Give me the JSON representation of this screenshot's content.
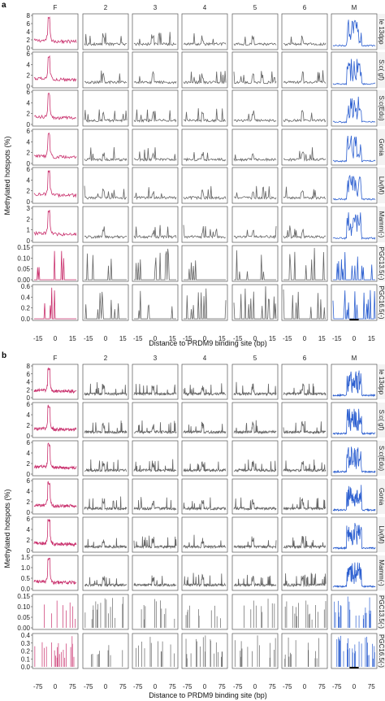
{
  "chart_data": [
    {
      "panel_label": "a",
      "type": "line",
      "grid": "facet 8 rows x 7 columns",
      "columns": [
        "F",
        "2",
        "3",
        "4",
        "5",
        "6",
        "M"
      ],
      "rows": [
        "Ie 13dpp",
        "S:c( gf)",
        "S:c(Edu)",
        "Gonia",
        "Liv(M)",
        "Mamm(-)",
        "PGC13.5(-)",
        "PGC16.5(-)"
      ],
      "ylabel": "Methylated hotspots (%)",
      "xlabel": "Distance to PRDM9 binding site (bp)",
      "xtick_labels": [
        "-15",
        "0",
        "15"
      ],
      "xlim": [
        -15,
        15
      ],
      "row_ylim": [
        [
          0,
          8
        ],
        [
          0,
          6
        ],
        [
          0,
          6
        ],
        [
          0,
          6
        ],
        [
          0,
          6
        ],
        [
          0,
          3
        ],
        [
          0,
          0.15
        ],
        [
          0,
          0.6
        ]
      ],
      "row_yticks": [
        [
          "0",
          "2",
          "4",
          "6",
          "8"
        ],
        [
          "0",
          "2",
          "4",
          "6"
        ],
        [
          "0",
          "2",
          "4",
          "6"
        ],
        [
          "0",
          "2",
          "4",
          "6"
        ],
        [
          "0",
          "2",
          "4",
          "6"
        ],
        [
          "0",
          "1",
          "2",
          "3"
        ],
        [
          "0.00",
          "0.05",
          "0.10",
          "0.15"
        ],
        [
          "0.0",
          "0.2",
          "0.4",
          "0.6"
        ]
      ],
      "column_colors": {
        "F": "#c9306d",
        "2": "#666666",
        "3": "#666666",
        "4": "#666666",
        "5": "#666666",
        "6": "#666666",
        "M": "#2c5fd0"
      },
      "profile_note": "F column peaks near 0 bp, middle columns flat with small peaks, M column has multiple peaks around 0 bp"
    },
    {
      "panel_label": "b",
      "type": "line",
      "grid": "facet 8 rows x 7 columns",
      "columns": [
        "F",
        "2",
        "3",
        "4",
        "5",
        "6",
        "M"
      ],
      "rows": [
        "Ie 13dpp",
        "S:c( gf)",
        "S:c(Edu)",
        "Gonia",
        "Liv(M)",
        "Mamm(-)",
        "PGC13.5(-)",
        "PGC16.5(-)"
      ],
      "ylabel": "Methylated hotspots (%)",
      "xlabel": "Distance to PRDM9 binding site (bp)",
      "xtick_labels": [
        "-75",
        "0",
        "75"
      ],
      "xtick_values": [
        -75,
        0,
        75
      ],
      "xlim": [
        -100,
        100
      ],
      "row_ylim": [
        [
          0,
          8
        ],
        [
          0,
          6
        ],
        [
          0,
          6
        ],
        [
          0,
          6
        ],
        [
          0,
          6
        ],
        [
          0,
          1.5
        ],
        [
          0,
          0.15
        ],
        [
          0,
          0.4
        ]
      ],
      "row_yticks": [
        [
          "0",
          "2",
          "4",
          "6",
          "8"
        ],
        [
          "0",
          "2",
          "4",
          "6"
        ],
        [
          "0",
          "2",
          "4",
          "6"
        ],
        [
          "0",
          "2",
          "4",
          "6"
        ],
        [
          "0",
          "2",
          "4",
          "6"
        ],
        [
          "0.0",
          "0.5",
          "1.0",
          "1.5"
        ],
        [
          "0.00",
          "0.05",
          "0.10",
          "0.15"
        ],
        [
          "0.0",
          "0.1",
          "0.2",
          "0.3",
          "0.4"
        ]
      ],
      "column_colors": {
        "F": "#c9306d",
        "2": "#666666",
        "3": "#666666",
        "4": "#666666",
        "5": "#666666",
        "6": "#666666",
        "M": "#2c5fd0"
      }
    }
  ]
}
